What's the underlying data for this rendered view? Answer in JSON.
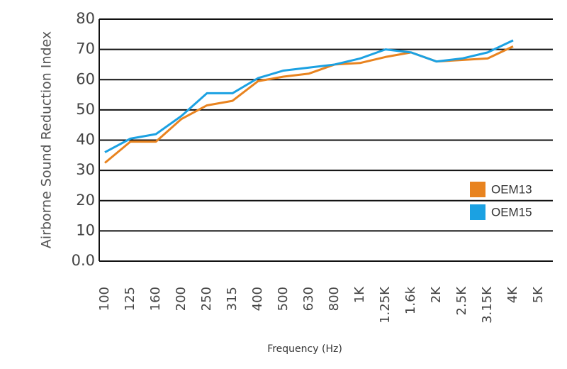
{
  "chart_data": {
    "type": "line",
    "x_label": "Frequency (Hz)",
    "y_label": "Airborne Sound Reduction Index",
    "categories": [
      "100",
      "125",
      "160",
      "200",
      "250",
      "315",
      "400",
      "500",
      "630",
      "800",
      "1K",
      "1.25K",
      "1.6k",
      "2K",
      "2.5K",
      "3.15K",
      "4K",
      "5K"
    ],
    "series": [
      {
        "name": "OEM13",
        "color": "#e8831f",
        "values": [
          32.5,
          39.5,
          39.5,
          47,
          51.5,
          53,
          59.5,
          61,
          62,
          65,
          65.5,
          67.5,
          69,
          66,
          66.5,
          67,
          71,
          null
        ]
      },
      {
        "name": "OEM15",
        "color": "#1ba1e2",
        "values": [
          36,
          40.5,
          42,
          48,
          55.5,
          55.5,
          60.5,
          63,
          64,
          65,
          67,
          70,
          69,
          66,
          67,
          69,
          73,
          null
        ]
      }
    ],
    "ylim": [
      0,
      80
    ],
    "yticks": [
      {
        "value": 0,
        "label": "0.0"
      },
      10,
      20,
      30,
      40,
      50,
      60,
      70,
      80
    ],
    "grid": true,
    "legend": "lower right"
  }
}
